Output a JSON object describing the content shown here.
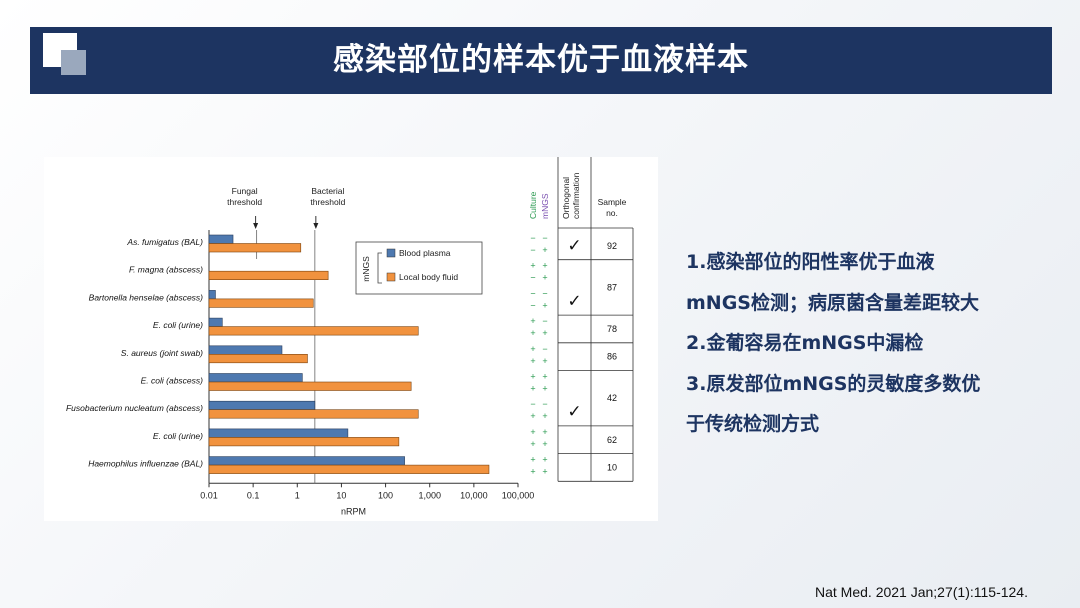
{
  "title": "感染部位的样本优于血液样本",
  "bullets": [
    "1.感染部位的阳性率优于血液",
    "mNGS检测；病原菌含量差距较大",
    "2.金葡容易在mNGS中漏检",
    "3.原发部位mNGS的灵敏度多数优",
    "于传统检测方式"
  ],
  "citation": "Nat Med. 2021 Jan;27(1):115-124.",
  "chart_data": {
    "type": "bar",
    "orientation": "horizontal",
    "x_scale": "log",
    "xlabel": "nRPM",
    "xlim": [
      0.01,
      100000
    ],
    "x_ticks": [
      0.01,
      0.1,
      1,
      10,
      100,
      1000,
      10000,
      100000
    ],
    "x_tick_labels": [
      "0.01",
      "0.1",
      "1",
      "10",
      "100",
      "1,000",
      "10,000",
      "100,000"
    ],
    "thresholds": [
      {
        "label_lines": [
          "Fungal",
          "threshold"
        ],
        "x": 0.12
      },
      {
        "label_lines": [
          "Bacterial",
          "threshold"
        ],
        "x": 2.5
      }
    ],
    "legend_title": "mNGS",
    "legend_placement": "top-center",
    "series": [
      {
        "name": "Blood plasma",
        "color": "#4e79b0"
      },
      {
        "name": "Local body fluid",
        "color": "#f1923e"
      }
    ],
    "column_headers": {
      "culture": "Culture",
      "mngs": "mNGS",
      "orthogonal": [
        "Orthogonal",
        "confirmation"
      ],
      "sample": [
        "Sample",
        "no."
      ]
    },
    "check_glyph": "✓",
    "rows": [
      {
        "label": "As. fumigatus (BAL)",
        "plasma": 0.035,
        "local": 1.2,
        "culture": [
          "−",
          "−"
        ],
        "mngs": [
          "−",
          "+"
        ],
        "sample_group": 0
      },
      {
        "label": "F. magna (abscess)",
        "plasma": null,
        "local": 5,
        "culture": [
          "+",
          "−"
        ],
        "mngs": [
          "+",
          "+"
        ],
        "sample_group": 1
      },
      {
        "label": "Bartonella henselae (abscess)",
        "plasma": 0.014,
        "local": 2.3,
        "culture": [
          "−",
          "−"
        ],
        "mngs": [
          "−",
          "+"
        ],
        "sample_group": 1
      },
      {
        "label": "E. coli (urine)",
        "plasma": 0.02,
        "local": 550,
        "culture": [
          "+",
          "+"
        ],
        "mngs": [
          "−",
          "+"
        ],
        "sample_group": 2
      },
      {
        "label": "S. aureus (joint swab)",
        "plasma": 0.45,
        "local": 1.7,
        "culture": [
          "+",
          "+"
        ],
        "mngs": [
          "−",
          "+"
        ],
        "sample_group": 3
      },
      {
        "label": "E. coli (abscess)",
        "plasma": 1.3,
        "local": 380,
        "culture": [
          "+",
          "+"
        ],
        "mngs": [
          "+",
          "+"
        ],
        "sample_group": 4
      },
      {
        "label": "Fusobacterium nucleatum (abscess)",
        "plasma": 2.5,
        "local": 550,
        "culture": [
          "−",
          "+"
        ],
        "mngs": [
          "−",
          "+"
        ],
        "sample_group": 4
      },
      {
        "label": "E. coli (urine)",
        "plasma": 14,
        "local": 200,
        "culture": [
          "+",
          "+"
        ],
        "mngs": [
          "+",
          "+"
        ],
        "sample_group": 5
      },
      {
        "label": "Haemophilus influenzae (BAL)",
        "plasma": 270,
        "local": 22000,
        "culture": [
          "+",
          "+"
        ],
        "mngs": [
          "+",
          "+"
        ],
        "sample_group": 6
      }
    ],
    "orthogonal_checks": [
      0,
      2,
      6
    ],
    "sample_groups": [
      {
        "number": "92",
        "rows": [
          0,
          0
        ]
      },
      {
        "number": "87",
        "rows": [
          1,
          2
        ]
      },
      {
        "number": "78",
        "rows": [
          3,
          3
        ]
      },
      {
        "number": "86",
        "rows": [
          4,
          4
        ]
      },
      {
        "number": "42",
        "rows": [
          5,
          6
        ]
      },
      {
        "number": "62",
        "rows": [
          7,
          7
        ]
      },
      {
        "number": "10",
        "rows": [
          8,
          8
        ]
      }
    ]
  }
}
